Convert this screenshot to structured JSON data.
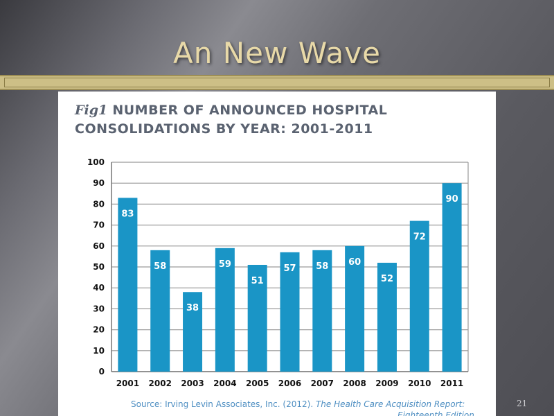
{
  "slide": {
    "title": "An New Wave",
    "page_number": "21"
  },
  "figure": {
    "label": "Fig1",
    "title_line1": "NUMBER OF ANNOUNCED HOSPITAL",
    "title_line2": "CONSOLIDATIONS BY YEAR: 2001-2011",
    "source_prefix": "Source: Irving Levin Associates, Inc. (2012). ",
    "source_italic": "The Health Care Acquisition Report:",
    "source_line2": "Eighteenth Edition"
  },
  "chart_data": {
    "type": "bar",
    "title": "NUMBER OF ANNOUNCED HOSPITAL CONSOLIDATIONS BY YEAR: 2001-2011",
    "categories": [
      "2001",
      "2002",
      "2003",
      "2004",
      "2005",
      "2006",
      "2007",
      "2008",
      "2009",
      "2010",
      "2011"
    ],
    "values": [
      83,
      58,
      38,
      59,
      51,
      57,
      58,
      60,
      52,
      72,
      90
    ],
    "ylim": [
      0,
      100
    ],
    "yticks": [
      0,
      10,
      20,
      30,
      40,
      50,
      60,
      70,
      80,
      90,
      100
    ],
    "xlabel": "",
    "ylabel": "",
    "grid": true,
    "legend": "none",
    "bar_color": "#1a95c6",
    "label_color": "#ffffff"
  }
}
